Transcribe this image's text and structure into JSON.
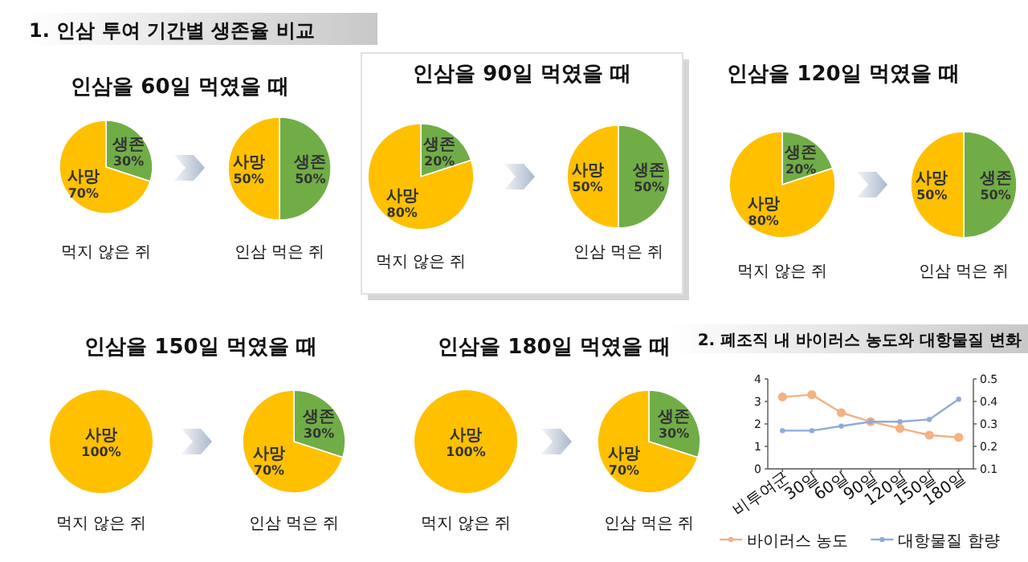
{
  "chart_data": [
    {
      "type": "other",
      "title": "1. 인삼 투여 기간별 생존율 비교"
    },
    {
      "type": "pie",
      "title": "인삼을 60일 먹였을 때",
      "xlabel": "먹지 않은 쥐",
      "categories": [
        "생존",
        "사망"
      ],
      "values": [
        30,
        70
      ],
      "value_labels": [
        "30%",
        "70%"
      ],
      "colors": [
        "#70ad47",
        "#ffc000"
      ]
    },
    {
      "type": "pie",
      "xlabel": "인삼 먹은 쥐",
      "categories": [
        "생존",
        "사망"
      ],
      "values": [
        50,
        50
      ],
      "value_labels": [
        "50%",
        "50%"
      ],
      "colors": [
        "#70ad47",
        "#ffc000"
      ]
    },
    {
      "type": "pie",
      "title": "인삼을 90일 먹였을 때",
      "xlabel": "먹지 않은 쥐",
      "categories": [
        "생존",
        "사망"
      ],
      "values": [
        20,
        80
      ],
      "value_labels": [
        "20%",
        "80%"
      ],
      "colors": [
        "#70ad47",
        "#ffc000"
      ]
    },
    {
      "type": "pie",
      "xlabel": "인삼 먹은 쥐",
      "categories": [
        "생존",
        "사망"
      ],
      "values": [
        50,
        50
      ],
      "value_labels": [
        "50%",
        "50%"
      ],
      "colors": [
        "#70ad47",
        "#ffc000"
      ]
    },
    {
      "type": "pie",
      "title": "인삼을 120일 먹였을 때",
      "xlabel": "먹지 않은 쥐",
      "categories": [
        "생존",
        "사망"
      ],
      "values": [
        20,
        80
      ],
      "value_labels": [
        "20%",
        "80%"
      ],
      "colors": [
        "#70ad47",
        "#ffc000"
      ]
    },
    {
      "type": "pie",
      "xlabel": "인삼 먹은 쥐",
      "categories": [
        "생존",
        "사망"
      ],
      "values": [
        50,
        50
      ],
      "value_labels": [
        "50%",
        "50%"
      ],
      "colors": [
        "#70ad47",
        "#ffc000"
      ]
    },
    {
      "type": "pie",
      "title": "인삼을 150일 먹였을 때",
      "xlabel": "먹지 않은 쥐",
      "categories": [
        "사망"
      ],
      "values": [
        100
      ],
      "value_labels": [
        "100%"
      ],
      "colors": [
        "#ffc000"
      ]
    },
    {
      "type": "pie",
      "xlabel": "인삼 먹은 쥐",
      "categories": [
        "생존",
        "사망"
      ],
      "values": [
        30,
        70
      ],
      "value_labels": [
        "30%",
        "70%"
      ],
      "colors": [
        "#70ad47",
        "#ffc000"
      ]
    },
    {
      "type": "pie",
      "title": "인삼을 180일 먹였을 때",
      "xlabel": "먹지 않은 쥐",
      "categories": [
        "사망"
      ],
      "values": [
        100
      ],
      "value_labels": [
        "100%"
      ],
      "colors": [
        "#ffc000"
      ]
    },
    {
      "type": "pie",
      "xlabel": "인삼 먹은 쥐",
      "categories": [
        "생존",
        "사망"
      ],
      "values": [
        30,
        70
      ],
      "value_labels": [
        "30%",
        "70%"
      ],
      "colors": [
        "#70ad47",
        "#ffc000"
      ]
    },
    {
      "type": "line",
      "title": "2. 폐조직 내 바이러스 농도와 대항물질 변화",
      "categories": [
        "비투여군",
        "30일",
        "60일",
        "90일",
        "120일",
        "150일",
        "180일"
      ],
      "series": [
        {
          "name": "바이러스 농도",
          "color": "#f4b183",
          "values": [
            3.2,
            3.3,
            2.5,
            2.1,
            1.8,
            1.5,
            1.4
          ]
        },
        {
          "name": "대항물질 함량",
          "color": "#8faadc",
          "axis": "y2",
          "values": [
            0.27,
            0.27,
            0.29,
            0.31,
            0.31,
            0.32,
            0.41
          ]
        }
      ],
      "ylim": [
        0,
        4
      ],
      "yticks": [
        0,
        1,
        2,
        3,
        4
      ],
      "y2lim": [
        0.1,
        0.5
      ],
      "y2ticks": [
        0.1,
        0.2,
        0.3,
        0.4,
        0.5
      ],
      "marker": "circle",
      "legend": "bottom"
    }
  ]
}
